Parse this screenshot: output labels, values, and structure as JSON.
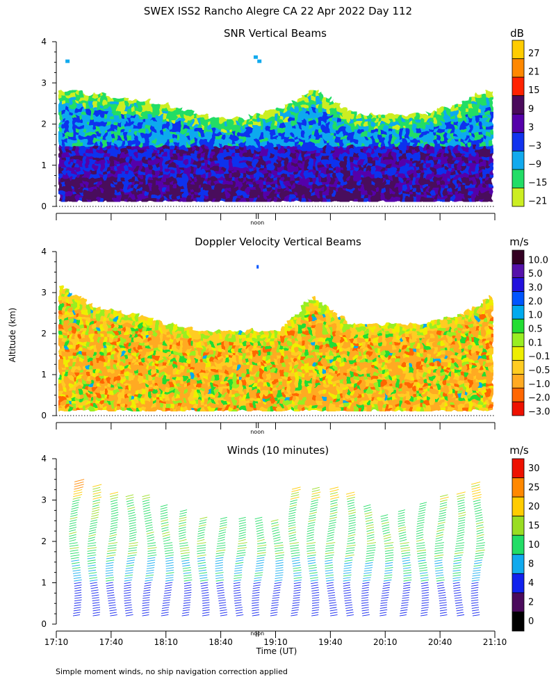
{
  "figure_title": "SWEX ISS2 Rancho Alegre CA  22 Apr 2022 Day 112",
  "footer_note": "Simple moment winds, no ship navigation correction applied",
  "y_axis_label": "Altitude (km)",
  "x_axis_label": "Time (UT)",
  "noon_label": "noon",
  "chart_data": [
    {
      "type": "heatmap",
      "title": "SNR Vertical Beams",
      "unit": "dB",
      "xlim": [
        0,
        240
      ],
      "ylim": [
        0,
        4
      ],
      "y_ticks": [
        0,
        1,
        2,
        3,
        4
      ],
      "x_tick_labels": [
        "17:10",
        "17:40",
        "18:10",
        "18:40",
        "19:10",
        "19:40",
        "20:10",
        "20:40",
        "21:10"
      ],
      "colorbar": [
        {
          "label": "27",
          "color": "#ffcc00"
        },
        {
          "label": "21",
          "color": "#ff8800"
        },
        {
          "label": "15",
          "color": "#ff2200"
        },
        {
          "label": "9",
          "color": "#4a0a5c"
        },
        {
          "label": "3",
          "color": "#5500aa"
        },
        {
          "label": "−3",
          "color": "#1133ee"
        },
        {
          "label": "−9",
          "color": "#11aaee"
        },
        {
          "label": "−15",
          "color": "#22dd66"
        },
        {
          "label": "−21",
          "color": "#ccee22"
        }
      ],
      "summary": {
        "data_top_km": [
          2.8,
          2.7,
          2.55,
          2.4,
          2.15,
          2.1,
          2.3,
          2.8,
          2.25,
          2.15,
          2.2,
          2.45,
          2.85
        ],
        "cloud_patches": [
          {
            "t": 5,
            "z": 3.5
          },
          {
            "t": 108,
            "z": 3.6
          },
          {
            "t": 110,
            "z": 3.5
          }
        ]
      }
    },
    {
      "type": "heatmap",
      "title": "Doppler Velocity Vertical Beams",
      "unit": "m/s",
      "xlim": [
        0,
        240
      ],
      "ylim": [
        0,
        4
      ],
      "y_ticks": [
        0,
        1,
        2,
        3,
        4
      ],
      "x_tick_labels": [
        "17:10",
        "17:40",
        "18:10",
        "18:40",
        "19:10",
        "19:40",
        "20:10",
        "20:40",
        "21:10"
      ],
      "colorbar": [
        {
          "label": "10.0",
          "color": "#330022"
        },
        {
          "label": "5.0",
          "color": "#5511aa"
        },
        {
          "label": "3.0",
          "color": "#2211dd"
        },
        {
          "label": "2.0",
          "color": "#0055ff"
        },
        {
          "label": "1.0",
          "color": "#00aaee"
        },
        {
          "label": "0.5",
          "color": "#22dd33"
        },
        {
          "label": "0.1",
          "color": "#99ee22"
        },
        {
          "label": "−0.1",
          "color": "#eeee00"
        },
        {
          "label": "−0.5",
          "color": "#ffcc22"
        },
        {
          "label": "−1.0",
          "color": "#ffaa22"
        },
        {
          "label": "−2.0",
          "color": "#ff6600"
        },
        {
          "label": "−3.0",
          "color": "#ee1100"
        }
      ],
      "summary": {
        "data_top_km": [
          3.1,
          2.6,
          2.45,
          2.2,
          2.0,
          2.0,
          2.0,
          2.85,
          2.2,
          2.2,
          2.2,
          2.4,
          2.9
        ],
        "dominant_value_m_s": -1.0
      }
    },
    {
      "type": "barbs",
      "title": "Winds (10 minutes)",
      "unit": "m/s",
      "xlim": [
        0,
        240
      ],
      "ylim": [
        0,
        4
      ],
      "y_ticks": [
        0,
        1,
        2,
        3,
        4
      ],
      "x_tick_labels": [
        "17:10",
        "17:40",
        "18:10",
        "18:40",
        "19:10",
        "19:40",
        "20:10",
        "20:40",
        "21:10"
      ],
      "colorbar": [
        {
          "label": "30",
          "color": "#ee1100"
        },
        {
          "label": "25",
          "color": "#ff8800"
        },
        {
          "label": "20",
          "color": "#ffcc00"
        },
        {
          "label": "15",
          "color": "#99dd22"
        },
        {
          "label": "10",
          "color": "#22dd66"
        },
        {
          "label": "8",
          "color": "#11aaee"
        },
        {
          "label": "4",
          "color": "#1122ee"
        },
        {
          "label": "2",
          "color": "#4a0a5c"
        },
        {
          "label": "0",
          "color": "#000000"
        }
      ],
      "profile_times_min": [
        10,
        20,
        30,
        40,
        50,
        60,
        70,
        80,
        90,
        100,
        110,
        120,
        130,
        140,
        150,
        160,
        170,
        180,
        190,
        200,
        210,
        220,
        230
      ],
      "profile_top_km": [
        3.45,
        3.35,
        3.15,
        3.1,
        3.1,
        2.85,
        2.75,
        2.6,
        2.6,
        2.55,
        2.55,
        2.5,
        3.3,
        3.3,
        3.3,
        3.2,
        2.9,
        2.65,
        2.75,
        2.95,
        3.1,
        3.2,
        3.4
      ]
    }
  ]
}
